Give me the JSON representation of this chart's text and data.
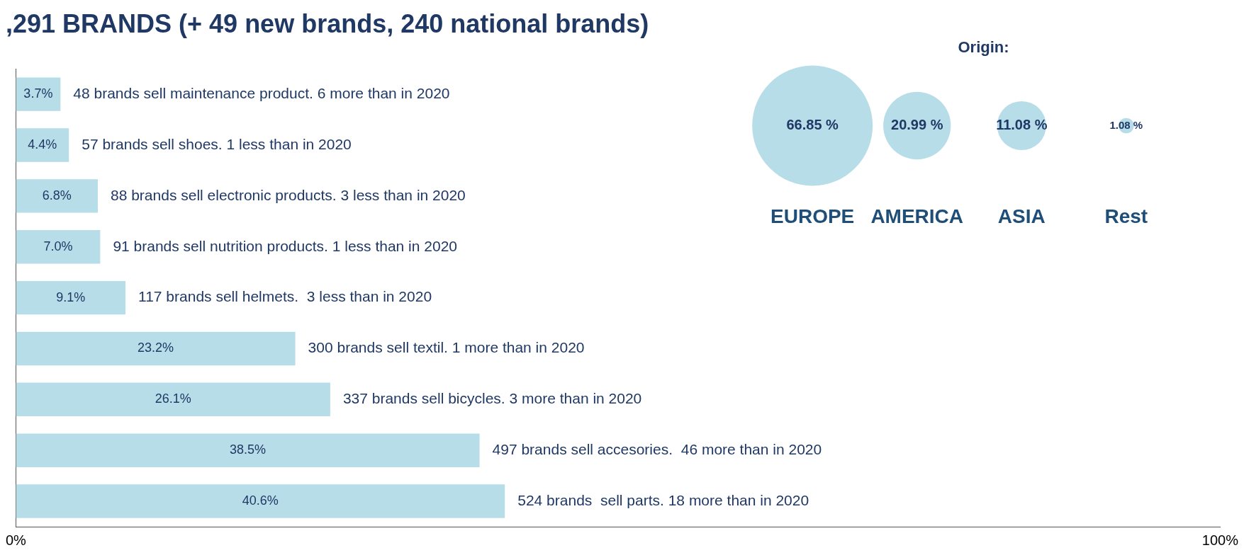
{
  "chart_data": [
    {
      "type": "bar",
      "orientation": "horizontal",
      "title": ",291 BRANDS (+ 49 new brands, 240 national brands)",
      "categories": [
        "48 brands sell maintenance product. 6 more than in 2020",
        "57 brands sell shoes. 1 less than in 2020",
        "88 brands sell electronic products. 3 less than in 2020",
        "91 brands sell nutrition products. 1 less than in 2020",
        "117 brands sell helmets.  3 less than in 2020",
        "300 brands sell textil. 1 more than in 2020",
        "337 brands sell bicycles. 3 more than in 2020",
        "497 brands sell accesories.  46 more than in 2020",
        "524 brands  sell parts. 18 more than in 2020"
      ],
      "values": [
        3.7,
        4.4,
        6.8,
        7.0,
        9.1,
        23.2,
        26.1,
        38.5,
        40.6
      ],
      "value_labels": [
        "3.7%",
        "4.4%",
        "6.8%",
        "7.0%",
        "9.1%",
        "23.2%",
        "26.1%",
        "38.5%",
        "40.6%"
      ],
      "color": "#b7dde8",
      "xlim": [
        0,
        100
      ],
      "xticks": [
        {
          "value": 0,
          "label": "0%"
        },
        {
          "value": 100,
          "label": "100%"
        }
      ],
      "grid": false,
      "legend": false
    },
    {
      "type": "other",
      "title": "Origin:",
      "categories": [
        "EUROPE",
        "AMERICA",
        "ASIA",
        "Rest"
      ],
      "values": [
        66.85,
        20.99,
        11.08,
        1.08
      ],
      "value_labels": [
        "66.85 %",
        "20.99 %",
        "11.08 %",
        "1.08 %"
      ],
      "color": "#b7dde8",
      "legend": false
    }
  ]
}
